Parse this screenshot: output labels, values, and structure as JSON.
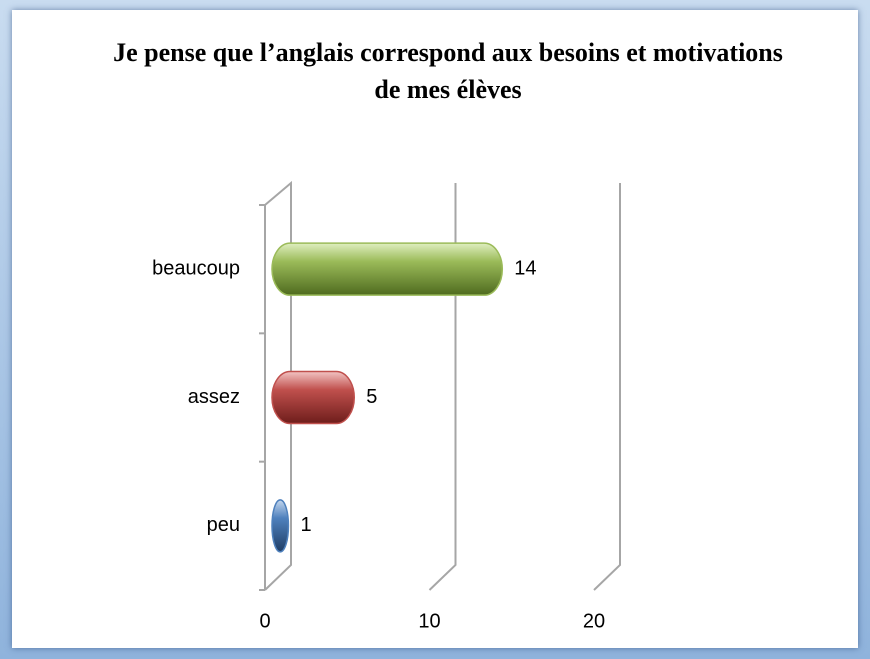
{
  "chart_data": {
    "type": "bar",
    "orientation": "horizontal",
    "title": "Je pense que l’anglais correspond aux besoins et motivations de mes élèves",
    "categories": [
      "peu",
      "assez",
      "beaucoup"
    ],
    "values": [
      1,
      5,
      14
    ],
    "colors": [
      "#4f81bd",
      "#c0504d",
      "#9bbb59"
    ],
    "xlim": [
      0,
      20
    ],
    "xticks": [
      0,
      10,
      20
    ],
    "grid": true
  }
}
